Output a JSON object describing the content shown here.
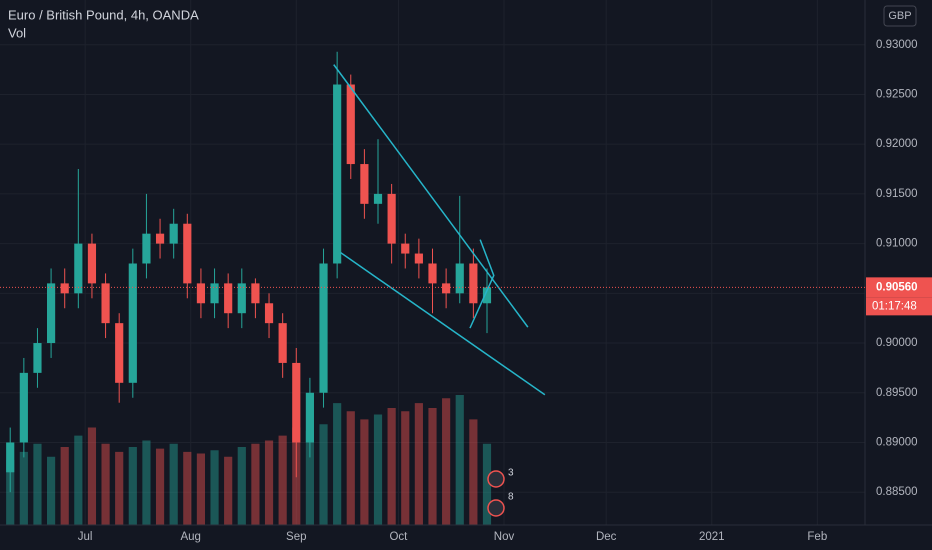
{
  "chart_data": {
    "type": "candlestick",
    "title": "Euro / British Pound, 4h, OANDA",
    "volume_label": "Vol",
    "currency": "GBP",
    "x": [
      8,
      12,
      16,
      20,
      24,
      28,
      32,
      36,
      40,
      44,
      48,
      52,
      56,
      60,
      64,
      68,
      72,
      76,
      80,
      84,
      88,
      92,
      96,
      100,
      104,
      108,
      112,
      116,
      120,
      124,
      128,
      132,
      136,
      140,
      144,
      148
    ],
    "open": [
      0.887,
      0.89,
      0.897,
      0.9,
      0.906,
      0.905,
      0.91,
      0.906,
      0.902,
      0.896,
      0.908,
      0.911,
      0.91,
      0.912,
      0.906,
      0.904,
      0.906,
      0.903,
      0.906,
      0.904,
      0.902,
      0.898,
      0.89,
      0.895,
      0.908,
      0.926,
      0.918,
      0.914,
      0.915,
      0.91,
      0.909,
      0.908,
      0.906,
      0.905,
      0.908,
      0.904
    ],
    "high": [
      0.8915,
      0.8985,
      0.9015,
      0.9075,
      0.9075,
      0.9175,
      0.911,
      0.907,
      0.903,
      0.9095,
      0.915,
      0.9125,
      0.9135,
      0.913,
      0.9075,
      0.9075,
      0.907,
      0.9075,
      0.9065,
      0.905,
      0.903,
      0.8995,
      0.8965,
      0.9095,
      0.9293,
      0.927,
      0.9195,
      0.9205,
      0.916,
      0.911,
      0.9105,
      0.9095,
      0.9075,
      0.9148,
      0.9095,
      0.9075
    ],
    "low": [
      0.885,
      0.8885,
      0.8955,
      0.8985,
      0.9035,
      0.9035,
      0.9045,
      0.9005,
      0.894,
      0.8945,
      0.9065,
      0.9085,
      0.9085,
      0.9045,
      0.9025,
      0.9025,
      0.9015,
      0.9015,
      0.9025,
      0.9005,
      0.8965,
      0.8865,
      0.8885,
      0.8935,
      0.9065,
      0.9165,
      0.9125,
      0.912,
      0.908,
      0.9075,
      0.9065,
      0.903,
      0.9035,
      0.904,
      0.9025,
      0.901
    ],
    "close": [
      0.89,
      0.897,
      0.9,
      0.906,
      0.905,
      0.91,
      0.906,
      0.902,
      0.896,
      0.908,
      0.911,
      0.91,
      0.912,
      0.906,
      0.904,
      0.906,
      0.903,
      0.906,
      0.904,
      0.902,
      0.898,
      0.89,
      0.895,
      0.908,
      0.926,
      0.918,
      0.914,
      0.915,
      0.91,
      0.909,
      0.908,
      0.906,
      0.905,
      0.908,
      0.904,
      0.9056
    ],
    "volume": [
      40,
      45,
      50,
      42,
      48,
      55,
      60,
      50,
      45,
      48,
      52,
      47,
      50,
      45,
      44,
      46,
      42,
      48,
      50,
      52,
      55,
      60,
      58,
      62,
      75,
      70,
      65,
      68,
      72,
      70,
      75,
      72,
      78,
      80,
      65,
      50
    ],
    "up_color": "#26a69a",
    "down_color": "#ef5350",
    "xlim": [
      5,
      259
    ],
    "xticks": [
      {
        "value": 30,
        "label": "Jul"
      },
      {
        "value": 61,
        "label": "Aug"
      },
      {
        "value": 92,
        "label": "Sep"
      },
      {
        "value": 122,
        "label": "Oct"
      },
      {
        "value": 153,
        "label": "Nov"
      },
      {
        "value": 183,
        "label": "Dec"
      },
      {
        "value": 214,
        "label": "2021"
      },
      {
        "value": 245,
        "label": "Feb"
      }
    ],
    "ylim": [
      0.8817,
      0.9345
    ],
    "yticks": [
      {
        "value": 0.885,
        "label": "0.88500"
      },
      {
        "value": 0.89,
        "label": "0.89000"
      },
      {
        "value": 0.895,
        "label": "0.89500"
      },
      {
        "value": 0.9,
        "label": "0.90000"
      },
      {
        "value": 0.905,
        "label": "0.90500"
      },
      {
        "value": 0.91,
        "label": "0.91000"
      },
      {
        "value": 0.915,
        "label": "0.91500"
      },
      {
        "value": 0.92,
        "label": "0.92000"
      },
      {
        "value": 0.925,
        "label": "0.92500"
      },
      {
        "value": 0.93,
        "label": "0.93000"
      }
    ],
    "grid": true,
    "last_price": {
      "value": 0.9056,
      "label": "0.90560"
    },
    "countdown": "01:17:48",
    "drawings": [
      {
        "x": [
          103,
          160
        ],
        "y": [
          0.928,
          0.9016
        ]
      },
      {
        "x": [
          105,
          165
        ],
        "y": [
          0.9091,
          0.8948
        ]
      },
      {
        "x": [
          143,
          150,
          146
        ],
        "y": [
          0.9015,
          0.9068,
          0.9104
        ]
      }
    ],
    "events": [
      {
        "count": "3"
      },
      {
        "count": "8"
      }
    ]
  }
}
